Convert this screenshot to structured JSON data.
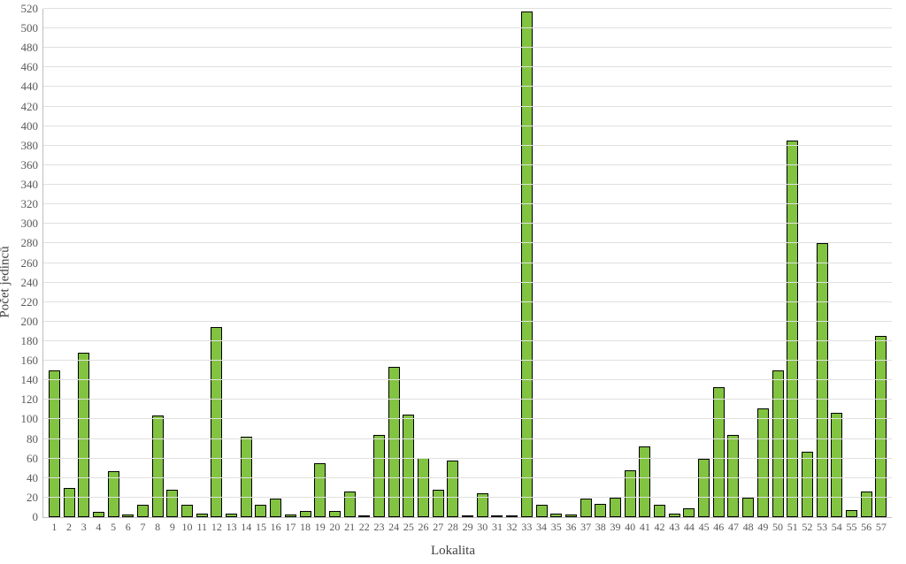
{
  "chart": {
    "type": "bar",
    "x_label": "Lokalita",
    "y_label": "Počet jedinců",
    "label_fontsize": 15,
    "tick_fontsize_x": 12,
    "tick_fontsize_y": 13,
    "tick_color": "#595959",
    "label_color": "#404040",
    "background_color": "#ffffff",
    "grid_color": "#e0e0e0",
    "axis_line_color": "#bfbfbf",
    "bar_fill_color": "#82c341",
    "bar_border_color": "#000000",
    "bar_width_ratio": 0.78,
    "ylim": [
      0,
      520
    ],
    "ytick_step": 20,
    "yticks": [
      0,
      20,
      40,
      60,
      80,
      100,
      120,
      140,
      160,
      180,
      200,
      220,
      240,
      260,
      280,
      300,
      320,
      340,
      360,
      380,
      400,
      420,
      440,
      460,
      480,
      500,
      520
    ],
    "categories": [
      "1",
      "2",
      "3",
      "4",
      "5",
      "6",
      "7",
      "8",
      "9",
      "10",
      "11",
      "12",
      "13",
      "14",
      "15",
      "16",
      "17",
      "18",
      "19",
      "20",
      "21",
      "22",
      "23",
      "24",
      "25",
      "26",
      "27",
      "28",
      "29",
      "30",
      "31",
      "32",
      "33",
      "34",
      "35",
      "36",
      "37",
      "38",
      "39",
      "40",
      "41",
      "42",
      "43",
      "44",
      "45",
      "46",
      "47",
      "48",
      "49",
      "50",
      "51",
      "52",
      "53",
      "54",
      "55",
      "56",
      "57"
    ],
    "values": [
      150,
      30,
      168,
      5,
      47,
      3,
      13,
      104,
      28,
      13,
      4,
      194,
      4,
      82,
      13,
      19,
      3,
      6,
      55,
      6,
      26,
      2,
      84,
      154,
      105,
      61,
      28,
      58,
      2,
      24,
      2,
      1,
      517,
      13,
      4,
      3,
      19,
      14,
      20,
      48,
      72,
      13,
      4,
      9,
      60,
      133,
      84,
      20,
      111,
      150,
      385,
      67,
      280,
      107,
      7,
      26,
      185
    ]
  }
}
